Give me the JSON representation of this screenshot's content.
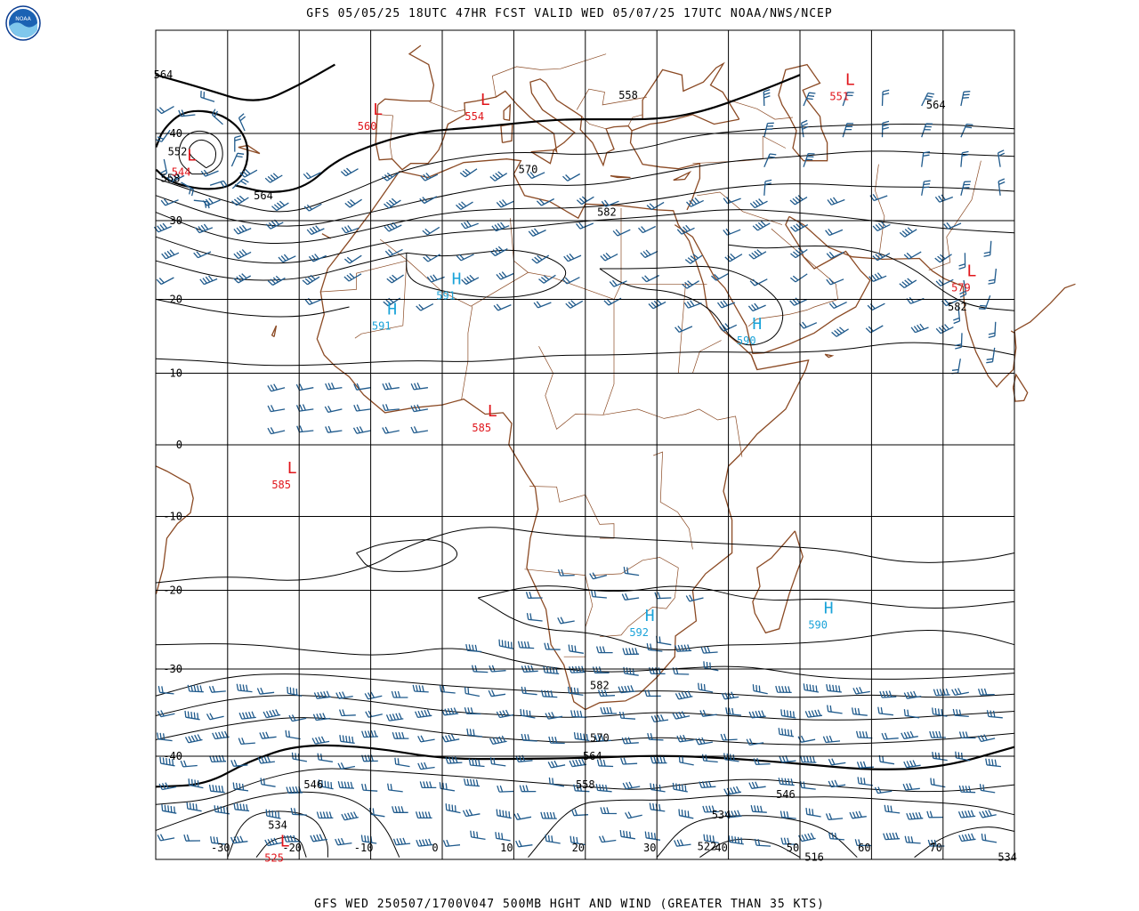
{
  "header": {
    "title": "GFS 05/05/25 18UTC 47HR FCST VALID WED 05/07/25 17UTC NOAA/NWS/NCEP",
    "logo_text": "NOAA"
  },
  "footer": {
    "title": "GFS WED 250507/1700V047 500MB HGHT AND WIND (GREATER THAN 35 KTS)"
  },
  "colors": {
    "grid": "#000000",
    "coast": "#8b4a24",
    "contour": "#000000",
    "wind_barb": "#1f5a8c",
    "low": "#e0151b",
    "high": "#1aa3d9"
  },
  "map": {
    "lon_range": [
      -40,
      80
    ],
    "lat_range": [
      -45,
      45
    ],
    "lat_labels": [
      "40",
      "30",
      "20",
      "10",
      "0",
      "-10",
      "-20",
      "-30",
      "-40"
    ],
    "lon_labels": [
      "-30",
      "-20",
      "-10",
      "0",
      "10",
      "20",
      "30",
      "40",
      "50",
      "60",
      "70"
    ]
  },
  "contour_labels": [
    {
      "text": "564",
      "lon": -39,
      "lat": 46
    },
    {
      "text": "558",
      "lon": 26,
      "lat": 44
    },
    {
      "text": "564",
      "lon": 69,
      "lat": 43
    },
    {
      "text": "552",
      "lon": -37,
      "lat": 38
    },
    {
      "text": "558",
      "lon": -38,
      "lat": 35
    },
    {
      "text": "564",
      "lon": -25,
      "lat": 33
    },
    {
      "text": "570",
      "lon": 12,
      "lat": 36
    },
    {
      "text": "582",
      "lon": 23,
      "lat": 31
    },
    {
      "text": "582",
      "lon": 72,
      "lat": 19
    },
    {
      "text": "582",
      "lon": 22,
      "lat": -32
    },
    {
      "text": "570",
      "lon": 22,
      "lat": -38
    },
    {
      "text": "564",
      "lon": 21,
      "lat": -40
    },
    {
      "text": "558",
      "lon": 20,
      "lat": -43
    },
    {
      "text": "546",
      "lon": -18,
      "lat": -43
    },
    {
      "text": "546",
      "lon": 48,
      "lat": -44
    },
    {
      "text": "534",
      "lon": 39,
      "lat": -46
    },
    {
      "text": "522",
      "lon": 37,
      "lat": -49
    },
    {
      "text": "534",
      "lon": -23,
      "lat": -47
    },
    {
      "text": "516",
      "lon": 52,
      "lat": -50
    },
    {
      "text": "534",
      "lon": 79,
      "lat": -50
    }
  ],
  "pressure_centers": [
    {
      "kind": "L",
      "value": "560",
      "lon": -9,
      "lat": 42
    },
    {
      "kind": "L",
      "value": "554",
      "lon": 6,
      "lat": 43
    },
    {
      "kind": "L",
      "value": "551",
      "lon": 57,
      "lat": 45
    },
    {
      "kind": "L",
      "value": "544",
      "lon": -35,
      "lat": 37
    },
    {
      "kind": "L",
      "value": "579",
      "lon": 74,
      "lat": 23
    },
    {
      "kind": "L",
      "value": "585",
      "lon": 7,
      "lat": 4
    },
    {
      "kind": "L",
      "value": "585",
      "lon": -21,
      "lat": -4
    },
    {
      "kind": "L",
      "value": "525",
      "lon": -22,
      "lat": -49
    },
    {
      "kind": "H",
      "value": "591",
      "lon": 2,
      "lat": 22
    },
    {
      "kind": "H",
      "value": "591",
      "lon": -7,
      "lat": 18
    },
    {
      "kind": "H",
      "value": "590",
      "lon": 44,
      "lat": 16
    },
    {
      "kind": "H",
      "value": "592",
      "lon": 29,
      "lat": -24
    },
    {
      "kind": "H",
      "value": "590",
      "lon": 54,
      "lat": -23
    }
  ]
}
